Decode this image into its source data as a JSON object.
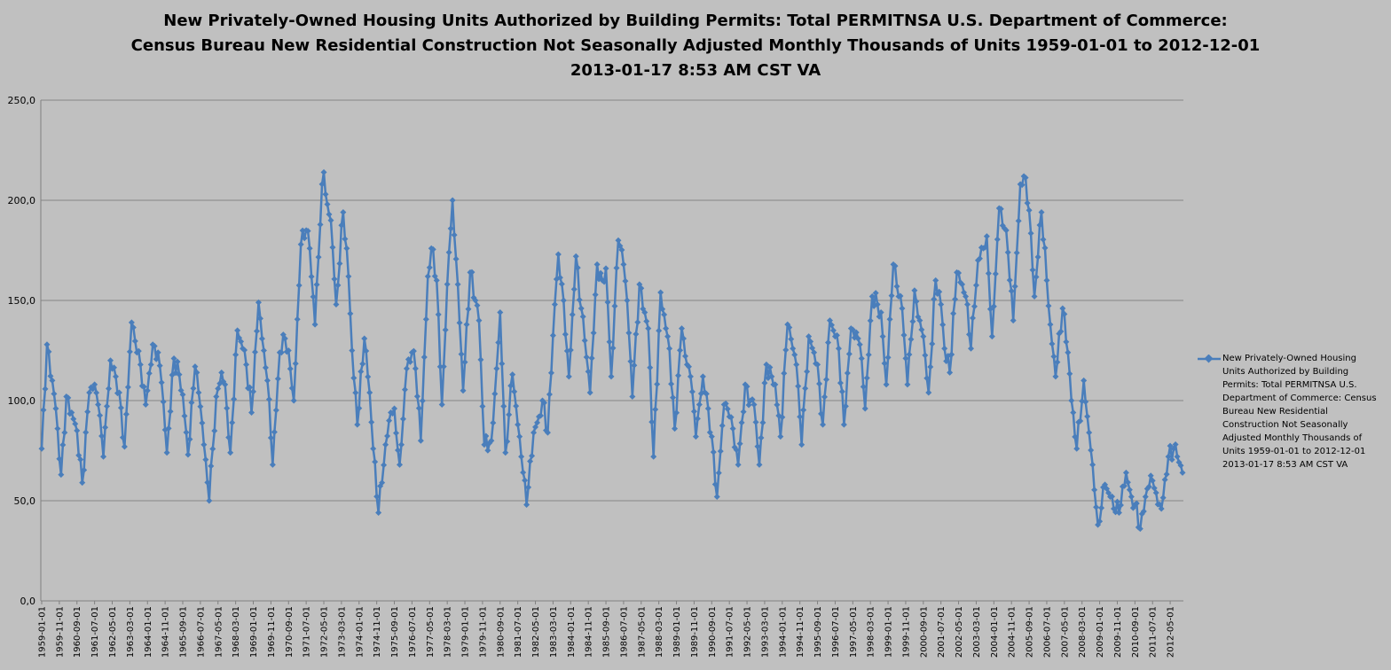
{
  "chart_data": {
    "type": "line",
    "title_lines": [
      "New Privately-Owned Housing Units Authorized by Building Permits: Total PERMITNSA U.S. Department of Commerce:",
      "Census Bureau New Residential Construction Not Seasonally Adjusted Monthly Thousands of Units 1959-01-01  to 2012-12-01",
      "2013-01-17 8:53 AM CST VA"
    ],
    "xlabel": "",
    "ylabel": "",
    "ylim": [
      0,
      250
    ],
    "y_ticks": [
      "0,0",
      "50,0",
      "100,0",
      "150,0",
      "200,0",
      "250,0"
    ],
    "x_ticks": [
      "1959-01-01",
      "1959-11-01",
      "1960-09-01",
      "1961-07-01",
      "1962-05-01",
      "1963-03-01",
      "1964-01-01",
      "1964-11-01",
      "1965-09-01",
      "1966-07-01",
      "1967-05-01",
      "1968-03-01",
      "1969-01-01",
      "1969-11-01",
      "1970-09-01",
      "1971-07-01",
      "1972-05-01",
      "1973-03-01",
      "1974-01-01",
      "1974-11-01",
      "1975-09-01",
      "1976-07-01",
      "1977-05-01",
      "1978-03-01",
      "1979-01-01",
      "1979-11-01",
      "1980-09-01",
      "1981-07-01",
      "1982-05-01",
      "1983-03-01",
      "1984-01-01",
      "1984-11-01",
      "1985-09-01",
      "1986-07-01",
      "1987-05-01",
      "1988-03-01",
      "1989-01-01",
      "1989-11-01",
      "1990-09-01",
      "1991-07-01",
      "1992-05-01",
      "1993-03-01",
      "1994-01-01",
      "1994-11-01",
      "1995-09-01",
      "1996-07-01",
      "1997-05-01",
      "1998-03-01",
      "1999-01-01",
      "1999-11-01",
      "2000-09-01",
      "2001-07-01",
      "2002-05-01",
      "2003-03-01",
      "2004-01-01",
      "2004-11-01",
      "2005-09-01",
      "2006-07-01",
      "2007-05-01",
      "2008-03-01",
      "2009-01-01",
      "2009-11-01",
      "2010-09-01",
      "2011-07-01",
      "2012-05-01"
    ],
    "grid": true,
    "legend_position": "right",
    "series_color": "#4a7ebb",
    "series": [
      {
        "name": "New Privately-Owned Housing Units Authorized by Building Permits: Total PERMITNSA U.S. Department of Commerce: Census Bureau New Residential Construction Not Seasonally Adjusted Monthly Thousands of Units 1959-01-01 to 2012-12-01 2013-01-17 8:53 AM CST VA",
        "start": "1959-01",
        "anchors": [
          [
            "1959-01",
            76
          ],
          [
            "1959-04",
            128
          ],
          [
            "1959-07",
            110
          ],
          [
            "1959-09",
            96
          ],
          [
            "1959-12",
            63
          ],
          [
            "1960-03",
            102
          ],
          [
            "1960-06",
            94
          ],
          [
            "1960-09",
            85
          ],
          [
            "1960-12",
            59
          ],
          [
            "1961-04",
            104
          ],
          [
            "1961-07",
            108
          ],
          [
            "1961-09",
            98
          ],
          [
            "1961-12",
            72
          ],
          [
            "1962-04",
            120
          ],
          [
            "1962-07",
            112
          ],
          [
            "1962-09",
            104
          ],
          [
            "1962-12",
            77
          ],
          [
            "1963-04",
            139
          ],
          [
            "1963-07",
            124
          ],
          [
            "1963-09",
            118
          ],
          [
            "1963-12",
            98
          ],
          [
            "1964-04",
            128
          ],
          [
            "1964-07",
            124
          ],
          [
            "1964-09",
            109
          ],
          [
            "1964-12",
            74
          ],
          [
            "1965-04",
            121
          ],
          [
            "1965-07",
            113
          ],
          [
            "1965-09",
            103
          ],
          [
            "1965-12",
            73
          ],
          [
            "1966-04",
            117
          ],
          [
            "1966-07",
            97
          ],
          [
            "1966-09",
            78
          ],
          [
            "1966-12",
            50
          ],
          [
            "1967-04",
            102
          ],
          [
            "1967-07",
            114
          ],
          [
            "1967-09",
            108
          ],
          [
            "1967-12",
            74
          ],
          [
            "1968-04",
            135
          ],
          [
            "1968-07",
            126
          ],
          [
            "1968-09",
            118
          ],
          [
            "1968-12",
            94
          ],
          [
            "1969-04",
            149
          ],
          [
            "1969-07",
            125
          ],
          [
            "1969-09",
            110
          ],
          [
            "1969-12",
            68
          ],
          [
            "1970-04",
            124
          ],
          [
            "1970-07",
            131
          ],
          [
            "1970-09",
            125
          ],
          [
            "1970-12",
            100
          ],
          [
            "1971-04",
            178
          ],
          [
            "1971-07",
            185
          ],
          [
            "1971-09",
            176
          ],
          [
            "1971-12",
            138
          ],
          [
            "1972-04",
            208
          ],
          [
            "1972-05",
            214
          ],
          [
            "1972-07",
            198
          ],
          [
            "1972-09",
            190
          ],
          [
            "1972-12",
            148
          ],
          [
            "1973-04",
            194
          ],
          [
            "1973-07",
            162
          ],
          [
            "1973-09",
            125
          ],
          [
            "1973-12",
            88
          ],
          [
            "1974-04",
            131
          ],
          [
            "1974-07",
            104
          ],
          [
            "1974-09",
            76
          ],
          [
            "1974-12",
            44
          ],
          [
            "1975-04",
            78
          ],
          [
            "1975-07",
            94
          ],
          [
            "1975-09",
            96
          ],
          [
            "1975-12",
            68
          ],
          [
            "1976-04",
            116
          ],
          [
            "1976-07",
            124
          ],
          [
            "1976-09",
            116
          ],
          [
            "1976-12",
            80
          ],
          [
            "1977-04",
            162
          ],
          [
            "1977-06",
            176
          ],
          [
            "1977-09",
            160
          ],
          [
            "1977-12",
            98
          ],
          [
            "1978-04",
            174
          ],
          [
            "1978-06",
            200
          ],
          [
            "1978-09",
            158
          ],
          [
            "1978-12",
            105
          ],
          [
            "1979-04",
            164
          ],
          [
            "1979-07",
            150
          ],
          [
            "1979-09",
            140
          ],
          [
            "1979-12",
            78
          ],
          [
            "1980-04",
            80
          ],
          [
            "1980-07",
            116
          ],
          [
            "1980-09",
            144
          ],
          [
            "1980-12",
            74
          ],
          [
            "1981-04",
            113
          ],
          [
            "1981-07",
            88
          ],
          [
            "1981-09",
            72
          ],
          [
            "1981-12",
            48
          ],
          [
            "1982-04",
            84
          ],
          [
            "1982-07",
            92
          ],
          [
            "1982-09",
            100
          ],
          [
            "1982-12",
            84
          ],
          [
            "1983-04",
            148
          ],
          [
            "1983-06",
            173
          ],
          [
            "1983-09",
            150
          ],
          [
            "1983-12",
            112
          ],
          [
            "1984-04",
            172
          ],
          [
            "1984-07",
            146
          ],
          [
            "1984-09",
            130
          ],
          [
            "1984-12",
            104
          ],
          [
            "1985-04",
            168
          ],
          [
            "1985-07",
            160
          ],
          [
            "1985-09",
            166
          ],
          [
            "1985-12",
            112
          ],
          [
            "1986-04",
            180
          ],
          [
            "1986-07",
            168
          ],
          [
            "1986-09",
            150
          ],
          [
            "1986-12",
            102
          ],
          [
            "1987-04",
            158
          ],
          [
            "1987-07",
            144
          ],
          [
            "1987-09",
            136
          ],
          [
            "1987-12",
            72
          ],
          [
            "1988-04",
            154
          ],
          [
            "1988-07",
            136
          ],
          [
            "1988-09",
            126
          ],
          [
            "1988-12",
            86
          ],
          [
            "1989-04",
            136
          ],
          [
            "1989-07",
            118
          ],
          [
            "1989-09",
            112
          ],
          [
            "1989-12",
            82
          ],
          [
            "1990-04",
            112
          ],
          [
            "1990-07",
            96
          ],
          [
            "1990-09",
            82
          ],
          [
            "1990-12",
            52
          ],
          [
            "1991-04",
            98
          ],
          [
            "1991-07",
            92
          ],
          [
            "1991-09",
            86
          ],
          [
            "1991-12",
            68
          ],
          [
            "1992-04",
            108
          ],
          [
            "1992-07",
            100
          ],
          [
            "1992-09",
            98
          ],
          [
            "1992-12",
            68
          ],
          [
            "1993-04",
            118
          ],
          [
            "1993-07",
            112
          ],
          [
            "1993-09",
            108
          ],
          [
            "1993-12",
            82
          ],
          [
            "1994-04",
            138
          ],
          [
            "1994-07",
            126
          ],
          [
            "1994-09",
            118
          ],
          [
            "1994-12",
            78
          ],
          [
            "1995-04",
            132
          ],
          [
            "1995-07",
            124
          ],
          [
            "1995-09",
            118
          ],
          [
            "1995-12",
            88
          ],
          [
            "1996-04",
            140
          ],
          [
            "1996-07",
            132
          ],
          [
            "1996-09",
            126
          ],
          [
            "1996-12",
            88
          ],
          [
            "1997-04",
            136
          ],
          [
            "1997-07",
            134
          ],
          [
            "1997-09",
            128
          ],
          [
            "1997-12",
            96
          ],
          [
            "1998-04",
            152
          ],
          [
            "1998-07",
            148
          ],
          [
            "1998-09",
            144
          ],
          [
            "1998-12",
            108
          ],
          [
            "1999-04",
            168
          ],
          [
            "1999-07",
            152
          ],
          [
            "1999-09",
            146
          ],
          [
            "1999-12",
            108
          ],
          [
            "2000-04",
            155
          ],
          [
            "2000-07",
            140
          ],
          [
            "2000-09",
            132
          ],
          [
            "2000-12",
            104
          ],
          [
            "2001-04",
            160
          ],
          [
            "2001-07",
            148
          ],
          [
            "2001-09",
            126
          ],
          [
            "2001-12",
            114
          ],
          [
            "2002-04",
            164
          ],
          [
            "2002-07",
            158
          ],
          [
            "2002-09",
            152
          ],
          [
            "2002-12",
            126
          ],
          [
            "2003-04",
            170
          ],
          [
            "2003-07",
            176
          ],
          [
            "2003-09",
            182
          ],
          [
            "2003-12",
            132
          ],
          [
            "2004-04",
            196
          ],
          [
            "2004-07",
            186
          ],
          [
            "2004-09",
            174
          ],
          [
            "2004-12",
            140
          ],
          [
            "2005-04",
            208
          ],
          [
            "2005-06",
            212
          ],
          [
            "2005-09",
            195
          ],
          [
            "2005-12",
            152
          ],
          [
            "2006-04",
            194
          ],
          [
            "2006-07",
            160
          ],
          [
            "2006-09",
            138
          ],
          [
            "2006-12",
            112
          ],
          [
            "2007-04",
            146
          ],
          [
            "2007-07",
            124
          ],
          [
            "2007-09",
            100
          ],
          [
            "2007-12",
            76
          ],
          [
            "2008-04",
            110
          ],
          [
            "2008-07",
            84
          ],
          [
            "2008-09",
            68
          ],
          [
            "2008-12",
            38
          ],
          [
            "2009-04",
            58
          ],
          [
            "2009-07",
            52
          ],
          [
            "2009-09",
            46
          ],
          [
            "2009-12",
            44
          ],
          [
            "2010-04",
            64
          ],
          [
            "2010-07",
            52
          ],
          [
            "2010-09",
            48
          ],
          [
            "2010-12",
            36
          ],
          [
            "2011-04",
            56
          ],
          [
            "2011-07",
            60
          ],
          [
            "2011-09",
            54
          ],
          [
            "2011-12",
            46
          ],
          [
            "2012-04",
            72
          ],
          [
            "2012-07",
            76
          ],
          [
            "2012-09",
            72
          ],
          [
            "2012-12",
            64
          ]
        ]
      }
    ]
  }
}
